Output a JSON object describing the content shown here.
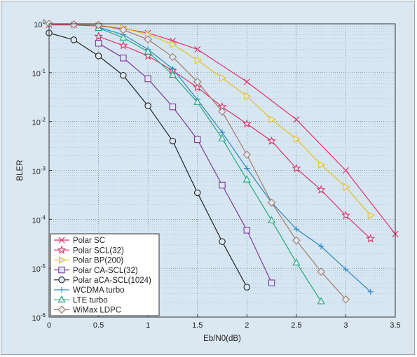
{
  "chart_data": {
    "type": "line",
    "title": "",
    "xlabel": "Eb/N0(dB)",
    "ylabel": "BLER",
    "xlim": [
      0,
      3.5
    ],
    "ylim": [
      1e-06,
      1
    ],
    "yscale": "log",
    "grid": true,
    "legend_position": "bottom-left",
    "x_ticks": [
      "0",
      "0.5",
      "1",
      "1.5",
      "2",
      "2.5",
      "3",
      "3.5"
    ],
    "x_tick_values": [
      0,
      0.5,
      1,
      1.5,
      2,
      2.5,
      3,
      3.5
    ],
    "y_ticks": [
      {
        "value": 1,
        "base": "10",
        "exp": "0"
      },
      {
        "value": 0.1,
        "base": "10",
        "exp": "-1"
      },
      {
        "value": 0.01,
        "base": "10",
        "exp": "-2"
      },
      {
        "value": 0.001,
        "base": "10",
        "exp": "-3"
      },
      {
        "value": 0.0001,
        "base": "10",
        "exp": "-4"
      },
      {
        "value": 1e-05,
        "base": "10",
        "exp": "-5"
      },
      {
        "value": 1e-06,
        "base": "10",
        "exp": "-6"
      }
    ],
    "series": [
      {
        "name": "Polar SC",
        "color": "#e0336a",
        "marker": "x",
        "x": [
          0,
          0.25,
          0.5,
          0.75,
          1,
          1.25,
          1.5,
          2,
          2.5,
          3,
          3.5
        ],
        "y": [
          0.95,
          0.95,
          0.9,
          0.8,
          0.65,
          0.45,
          0.3,
          0.065,
          0.011,
          0.001,
          5e-05
        ]
      },
      {
        "name": "Polar SCL(32)",
        "color": "#e0336a",
        "marker": "star",
        "x": [
          0.5,
          0.75,
          1,
          1.25,
          1.5,
          1.75,
          2,
          2.25,
          2.5,
          2.75,
          3,
          3.25
        ],
        "y": [
          0.55,
          0.36,
          0.22,
          0.11,
          0.05,
          0.02,
          0.009,
          0.004,
          0.0011,
          0.0004,
          0.00012,
          4e-05
        ]
      },
      {
        "name": "Polar BP(200)",
        "color": "#e8c21e",
        "marker": "triangle-right",
        "x": [
          0.5,
          0.75,
          1,
          1.25,
          1.5,
          1.75,
          2,
          2.25,
          2.5,
          2.75,
          3,
          3.25
        ],
        "y": [
          0.92,
          0.82,
          0.6,
          0.38,
          0.18,
          0.078,
          0.033,
          0.011,
          0.0044,
          0.0013,
          0.00046,
          0.00012
        ]
      },
      {
        "name": "Polar CA-SCL(32)",
        "color": "#7d3c98",
        "marker": "square",
        "x": [
          0.5,
          0.75,
          1,
          1.25,
          1.5,
          1.75,
          2,
          2.25
        ],
        "y": [
          0.4,
          0.2,
          0.075,
          0.02,
          0.0043,
          0.0005,
          6e-05,
          5e-06
        ]
      },
      {
        "name": "Polar aCA-SCL(1024)",
        "color": "#222222",
        "marker": "circle",
        "x": [
          0,
          0.25,
          0.5,
          0.75,
          1,
          1.25,
          1.5,
          1.75,
          2
        ],
        "y": [
          0.65,
          0.47,
          0.22,
          0.088,
          0.021,
          0.004,
          0.00035,
          3.5e-05,
          4.1e-06
        ]
      },
      {
        "name": "WCDMA turbo",
        "color": "#2e86c1",
        "marker": "plus",
        "x": [
          0.5,
          0.75,
          1,
          1.25,
          1.5,
          1.75,
          2,
          2.25,
          2.5,
          2.75,
          3,
          3.25
        ],
        "y": [
          0.85,
          0.6,
          0.3,
          0.12,
          0.028,
          0.006,
          0.0011,
          0.00022,
          6.3e-05,
          2.8e-05,
          9.5e-06,
          3.3e-06
        ]
      },
      {
        "name": "LTE turbo",
        "color": "#27a87a",
        "marker": "triangle-up",
        "x": [
          0.5,
          0.75,
          1,
          1.25,
          1.5,
          1.75,
          2,
          2.25,
          2.5,
          2.75
        ],
        "y": [
          0.82,
          0.52,
          0.27,
          0.09,
          0.025,
          0.0045,
          0.00065,
          9.5e-05,
          1.3e-05,
          2.1e-06
        ]
      },
      {
        "name": "WiMax LDPC",
        "color": "#a07d6a",
        "marker": "diamond",
        "x": [
          0,
          0.25,
          0.5,
          0.75,
          1,
          1.25,
          1.5,
          1.75,
          2,
          2.25,
          2.5,
          2.75,
          3
        ],
        "y": [
          1.0,
          0.97,
          0.95,
          0.75,
          0.48,
          0.21,
          0.065,
          0.016,
          0.0021,
          0.00022,
          3.7e-05,
          8.5e-06,
          2.3e-06
        ]
      }
    ]
  }
}
